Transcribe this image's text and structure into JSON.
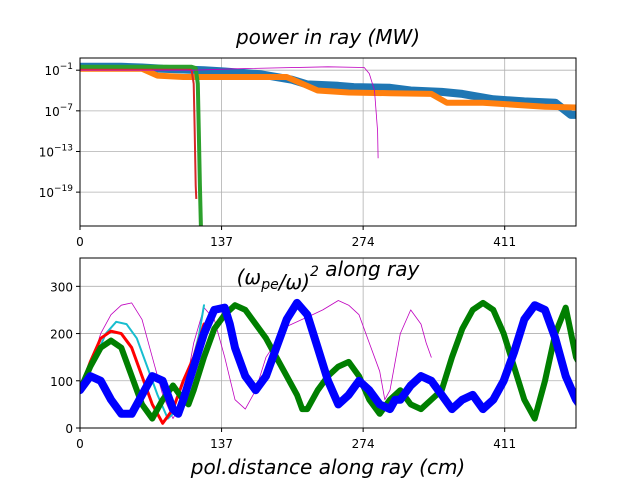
{
  "chart_data": [
    {
      "type": "line",
      "title": "power in ray (MW)",
      "xlabel": "",
      "ylabel": "",
      "yscale": "log",
      "xlim": [
        0,
        480
      ],
      "ylim_exp": [
        -24,
        0.8
      ],
      "xticks": [
        0,
        137,
        274,
        411
      ],
      "yticks": [
        {
          "exp": -1,
          "label": "10",
          "sup": "−1"
        },
        {
          "exp": -7,
          "label": "10",
          "sup": "−7"
        },
        {
          "exp": -13,
          "label": "10",
          "sup": "−13"
        },
        {
          "exp": -19,
          "label": "10",
          "sup": "−19"
        }
      ],
      "grid": true,
      "series": [
        {
          "color": "#1f77b4",
          "width": 8,
          "points": [
            [
              0,
              -0.5
            ],
            [
              40,
              -0.5
            ],
            [
              60,
              -0.6
            ],
            [
              80,
              -0.8
            ],
            [
              100,
              -0.9
            ],
            [
              120,
              -1.0
            ],
            [
              140,
              -1.2
            ],
            [
              175,
              -1.6
            ],
            [
              190,
              -2.0
            ],
            [
              205,
              -2.4
            ],
            [
              220,
              -3.1
            ],
            [
              250,
              -3.3
            ],
            [
              265,
              -3.5
            ],
            [
              300,
              -3.6
            ],
            [
              320,
              -4.0
            ],
            [
              350,
              -4.2
            ],
            [
              370,
              -4.5
            ],
            [
              400,
              -5.3
            ],
            [
              430,
              -5.6
            ],
            [
              460,
              -5.8
            ],
            [
              475,
              -7.6
            ],
            [
              480,
              -7.6
            ]
          ]
        },
        {
          "color": "#ff7f0e",
          "width": 6,
          "points": [
            [
              0,
              -0.8
            ],
            [
              60,
              -0.8
            ],
            [
              75,
              -1.8
            ],
            [
              100,
              -2.0
            ],
            [
              140,
              -2.0
            ],
            [
              200,
              -2.0
            ],
            [
              215,
              -3.0
            ],
            [
              230,
              -4.0
            ],
            [
              260,
              -4.3
            ],
            [
              300,
              -4.4
            ],
            [
              340,
              -4.5
            ],
            [
              355,
              -5.8
            ],
            [
              390,
              -5.8
            ],
            [
              420,
              -6.1
            ],
            [
              450,
              -6.4
            ],
            [
              480,
              -6.5
            ]
          ]
        },
        {
          "color": "#d62728",
          "width": 2,
          "points": [
            [
              0,
              -0.8
            ],
            [
              105,
              -0.8
            ],
            [
              108,
              -1.0
            ],
            [
              110,
              -3.0
            ],
            [
              111,
              -10.0
            ],
            [
              112,
              -18.0
            ],
            [
              112.5,
              -20.0
            ]
          ]
        },
        {
          "color": "#2ca02c",
          "width": 4,
          "points": [
            [
              0,
              -0.5
            ],
            [
              108,
              -0.5
            ],
            [
              112,
              -0.7
            ],
            [
              114,
              -3.0
            ],
            [
              115,
              -10.0
            ],
            [
              116,
              -18.0
            ],
            [
              117,
              -24.0
            ]
          ]
        },
        {
          "color": "#bf00bf",
          "width": 0.8,
          "points": [
            [
              0,
              -1.0
            ],
            [
              110,
              -1.0
            ],
            [
              150,
              -0.8
            ],
            [
              240,
              -0.5
            ],
            [
              275,
              -0.6
            ],
            [
              280,
              -1.5
            ],
            [
              285,
              -4.0
            ],
            [
              288,
              -10.0
            ],
            [
              288.5,
              -14.0
            ]
          ]
        }
      ]
    },
    {
      "type": "line",
      "title": "(ωpe/ω)²  along ray",
      "xlabel": "pol.distance along ray  (cm)",
      "ylabel": "",
      "xlim": [
        0,
        480
      ],
      "ylim": [
        0,
        360
      ],
      "xticks": [
        0,
        137,
        274,
        411
      ],
      "yticks": [
        0,
        100,
        200,
        300
      ],
      "grid": true,
      "series": [
        {
          "color": "#bf00bf",
          "width": 0.8,
          "points": [
            [
              0,
              80
            ],
            [
              10,
              130
            ],
            [
              20,
              200
            ],
            [
              30,
              240
            ],
            [
              40,
              260
            ],
            [
              50,
              265
            ],
            [
              60,
              230
            ],
            [
              70,
              150
            ],
            [
              80,
              70
            ],
            [
              90,
              20
            ],
            [
              100,
              60
            ],
            [
              110,
              180
            ],
            [
              120,
              255
            ],
            [
              130,
              230
            ],
            [
              140,
              150
            ],
            [
              150,
              60
            ],
            [
              160,
              40
            ],
            [
              170,
              80
            ],
            [
              180,
              150
            ],
            [
              200,
              215
            ],
            [
              215,
              230
            ],
            [
              225,
              240
            ],
            [
              235,
              250
            ],
            [
              250,
              270
            ],
            [
              260,
              260
            ],
            [
              270,
              240
            ],
            [
              280,
              180
            ],
            [
              290,
              120
            ],
            [
              295,
              60
            ],
            [
              300,
              80
            ],
            [
              310,
              200
            ],
            [
              320,
              250
            ],
            [
              330,
              220
            ],
            [
              335,
              180
            ],
            [
              340,
              150
            ]
          ]
        },
        {
          "color": "#17becf",
          "width": 2,
          "points": [
            [
              0,
              80
            ],
            [
              5,
              100
            ],
            [
              15,
              150
            ],
            [
              25,
              200
            ],
            [
              35,
              225
            ],
            [
              45,
              220
            ],
            [
              55,
              190
            ],
            [
              65,
              130
            ],
            [
              75,
              70
            ],
            [
              85,
              20
            ],
            [
              95,
              40
            ],
            [
              105,
              110
            ],
            [
              115,
              195
            ],
            [
              120,
              260
            ]
          ]
        },
        {
          "color": "#ff0000",
          "width": 3,
          "points": [
            [
              0,
              80
            ],
            [
              10,
              140
            ],
            [
              20,
              190
            ],
            [
              30,
              205
            ],
            [
              40,
              200
            ],
            [
              50,
              170
            ],
            [
              60,
              110
            ],
            [
              70,
              50
            ],
            [
              80,
              10
            ],
            [
              90,
              40
            ],
            [
              100,
              100
            ],
            [
              110,
              150
            ],
            [
              120,
              220
            ]
          ]
        },
        {
          "color": "#007f00",
          "width": 6,
          "points": [
            [
              0,
              80
            ],
            [
              10,
              130
            ],
            [
              20,
              170
            ],
            [
              30,
              185
            ],
            [
              40,
              170
            ],
            [
              50,
              110
            ],
            [
              60,
              50
            ],
            [
              70,
              20
            ],
            [
              80,
              60
            ],
            [
              90,
              90
            ],
            [
              100,
              60
            ],
            [
              105,
              50
            ],
            [
              110,
              80
            ],
            [
              120,
              150
            ],
            [
              130,
              210
            ],
            [
              140,
              240
            ],
            [
              150,
              260
            ],
            [
              160,
              250
            ],
            [
              170,
              220
            ],
            [
              180,
              190
            ],
            [
              190,
              150
            ],
            [
              200,
              110
            ],
            [
              210,
              70
            ],
            [
              215,
              40
            ],
            [
              220,
              40
            ],
            [
              230,
              80
            ],
            [
              240,
              110
            ],
            [
              250,
              130
            ],
            [
              260,
              140
            ],
            [
              270,
              110
            ],
            [
              280,
              60
            ],
            [
              290,
              30
            ],
            [
              300,
              60
            ],
            [
              310,
              80
            ],
            [
              320,
              50
            ],
            [
              330,
              40
            ],
            [
              340,
              60
            ],
            [
              350,
              80
            ],
            [
              360,
              150
            ],
            [
              370,
              210
            ],
            [
              380,
              250
            ],
            [
              390,
              265
            ],
            [
              400,
              250
            ],
            [
              410,
              200
            ],
            [
              420,
              130
            ],
            [
              430,
              60
            ],
            [
              440,
              20
            ],
            [
              450,
              100
            ],
            [
              460,
              200
            ],
            [
              470,
              255
            ],
            [
              480,
              150
            ],
            [
              490,
              110
            ]
          ]
        },
        {
          "color": "#0000ff",
          "width": 8,
          "points": [
            [
              0,
              80
            ],
            [
              10,
              110
            ],
            [
              20,
              100
            ],
            [
              30,
              60
            ],
            [
              40,
              30
            ],
            [
              50,
              30
            ],
            [
              60,
              70
            ],
            [
              70,
              110
            ],
            [
              80,
              100
            ],
            [
              85,
              70
            ],
            [
              90,
              40
            ],
            [
              95,
              30
            ],
            [
              100,
              60
            ],
            [
              110,
              130
            ],
            [
              120,
              200
            ],
            [
              130,
              250
            ],
            [
              140,
              255
            ],
            [
              145,
              220
            ],
            [
              150,
              170
            ],
            [
              160,
              110
            ],
            [
              170,
              80
            ],
            [
              180,
              110
            ],
            [
              190,
              170
            ],
            [
              200,
              230
            ],
            [
              210,
              265
            ],
            [
              220,
              240
            ],
            [
              230,
              170
            ],
            [
              240,
              100
            ],
            [
              250,
              50
            ],
            [
              260,
              70
            ],
            [
              270,
              100
            ],
            [
              280,
              80
            ],
            [
              290,
              50
            ],
            [
              300,
              40
            ],
            [
              305,
              60
            ],
            [
              310,
              60
            ],
            [
              320,
              90
            ],
            [
              330,
              110
            ],
            [
              340,
              100
            ],
            [
              350,
              70
            ],
            [
              360,
              40
            ],
            [
              370,
              60
            ],
            [
              380,
              70
            ],
            [
              390,
              40
            ],
            [
              400,
              60
            ],
            [
              410,
              100
            ],
            [
              420,
              160
            ],
            [
              430,
              230
            ],
            [
              440,
              260
            ],
            [
              450,
              250
            ],
            [
              460,
              190
            ],
            [
              470,
              110
            ],
            [
              480,
              60
            ],
            [
              490,
              30
            ],
            [
              500,
              50
            ],
            [
              510,
              80
            ]
          ]
        }
      ]
    }
  ]
}
